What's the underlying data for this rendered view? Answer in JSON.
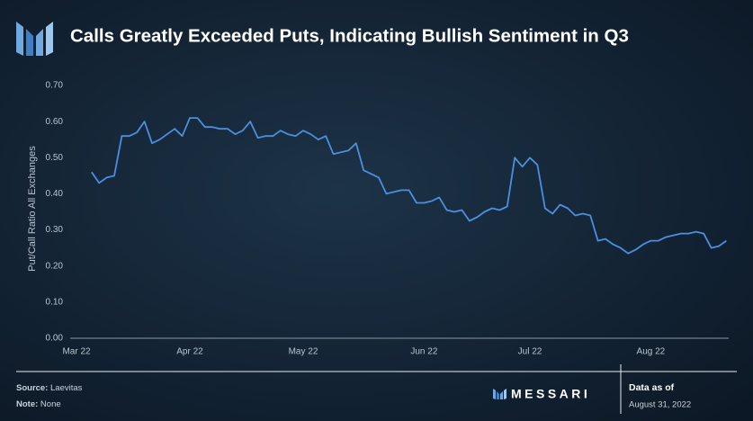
{
  "chart_data": {
    "type": "line",
    "title": "Calls Greatly Exceeded Puts, Indicating Bullish Sentiment in Q3",
    "y_label": "Put/Call Ratio All Exchanges",
    "color": "#4a8fe0",
    "grid": false,
    "ylim": [
      0,
      0.7
    ],
    "yticks": [
      {
        "value": 0,
        "label": "0.00"
      },
      {
        "value": 0.1,
        "label": "0.10"
      },
      {
        "value": 0.2,
        "label": "0.20"
      },
      {
        "value": 0.3,
        "label": "0.30"
      },
      {
        "value": 0.4,
        "label": "0.40"
      },
      {
        "value": 0.5,
        "label": "0.50"
      },
      {
        "value": 0.6,
        "label": "0.60"
      },
      {
        "value": 0.7,
        "label": "0.70"
      }
    ],
    "categories": [
      "Mar 22",
      null,
      null,
      null,
      null,
      null,
      null,
      null,
      null,
      null,
      null,
      null,
      null,
      null,
      null,
      "Apr 22",
      null,
      null,
      null,
      null,
      null,
      null,
      null,
      null,
      null,
      null,
      null,
      null,
      null,
      null,
      "May 22",
      null,
      null,
      null,
      null,
      null,
      null,
      null,
      null,
      null,
      null,
      null,
      null,
      null,
      null,
      null,
      "Jun 22",
      null,
      null,
      null,
      null,
      null,
      null,
      null,
      null,
      null,
      null,
      null,
      null,
      null,
      "Jul 22",
      null,
      null,
      null,
      null,
      null,
      null,
      null,
      null,
      null,
      null,
      null,
      null,
      null,
      null,
      null,
      "Aug 22",
      null,
      null,
      null,
      null,
      null,
      null,
      null,
      null,
      null,
      null
    ],
    "values": [
      null,
      null,
      0.46,
      0.43,
      0.445,
      0.45,
      0.56,
      0.56,
      0.57,
      0.6,
      0.54,
      0.55,
      0.565,
      0.58,
      0.56,
      0.61,
      0.61,
      0.585,
      0.585,
      0.58,
      0.58,
      0.565,
      0.575,
      0.6,
      0.555,
      0.56,
      0.56,
      0.575,
      0.565,
      0.56,
      0.575,
      0.565,
      0.55,
      0.56,
      0.51,
      0.515,
      0.52,
      0.54,
      0.465,
      0.455,
      0.445,
      0.4,
      0.405,
      0.41,
      0.41,
      0.375,
      0.375,
      0.38,
      0.39,
      0.355,
      0.35,
      0.355,
      0.325,
      0.335,
      0.35,
      0.36,
      0.355,
      0.365,
      0.5,
      0.475,
      0.5,
      0.48,
      0.36,
      0.345,
      0.37,
      0.36,
      0.34,
      0.345,
      0.34,
      0.27,
      0.275,
      0.26,
      0.25,
      0.235,
      0.245,
      0.26,
      0.27,
      0.27,
      0.28,
      0.285,
      0.29,
      0.29,
      0.295,
      0.29,
      0.25,
      0.255,
      0.27
    ]
  },
  "footer": {
    "source_label": "Source:",
    "source": "Laevitas",
    "note_label": "Note:",
    "note": "None",
    "brand": "MESSARI",
    "date_label": "Data as of",
    "date": "August 31, 2022"
  }
}
